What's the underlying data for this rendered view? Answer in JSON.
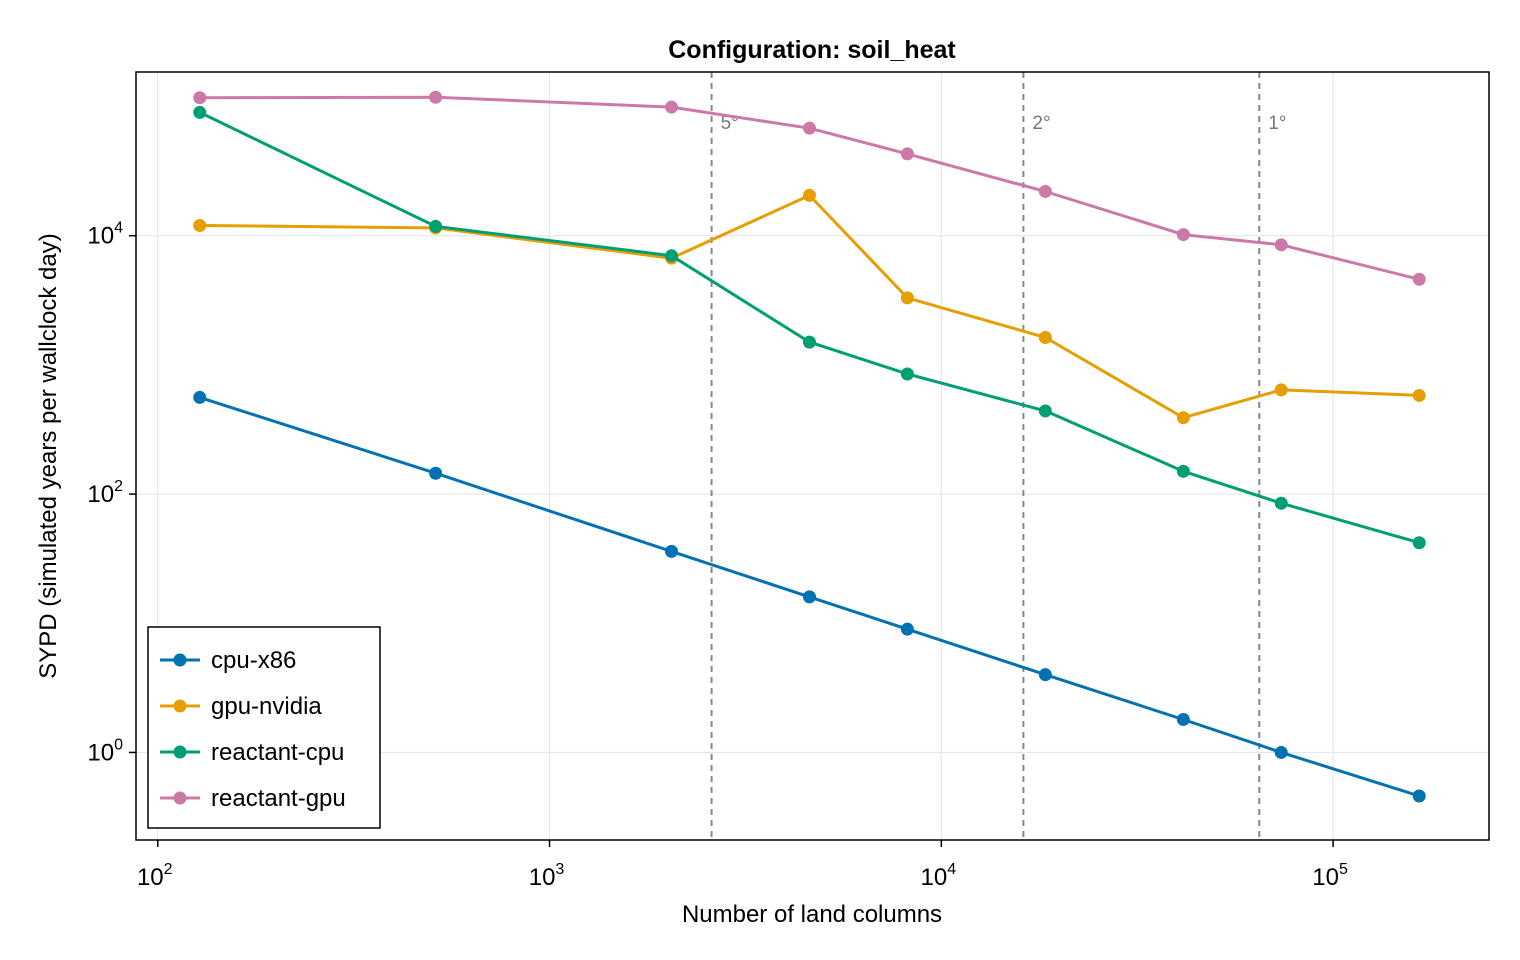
{
  "chart_data": {
    "type": "line",
    "title": "Configuration: soil_heat",
    "xlabel": "Number of land columns",
    "ylabel": "SYPD (simulated years per wallclock day)",
    "xscale": "log",
    "yscale": "log",
    "xlim": [
      88,
      250000
    ],
    "ylim": [
      0.21,
      185000
    ],
    "grid": true,
    "legend_position": "bottom-left",
    "xticks": [
      {
        "value": 100,
        "base": "10",
        "exp": "2"
      },
      {
        "value": 1000,
        "base": "10",
        "exp": "3"
      },
      {
        "value": 10000,
        "base": "10",
        "exp": "4"
      },
      {
        "value": 100000,
        "base": "10",
        "exp": "5"
      }
    ],
    "yticks": [
      {
        "value": 1,
        "base": "10",
        "exp": "0"
      },
      {
        "value": 100,
        "base": "10",
        "exp": "2"
      },
      {
        "value": 10000,
        "base": "10",
        "exp": "4"
      }
    ],
    "reference_lines": [
      {
        "x": 2592,
        "label": "5°"
      },
      {
        "x": 16200,
        "label": "2°"
      },
      {
        "x": 64800,
        "label": "1°"
      }
    ],
    "x": [
      128,
      512,
      2048,
      4608,
      8192,
      18432,
      41472,
      73728,
      165888
    ],
    "series": [
      {
        "name": "cpu-x86",
        "color": "#0072b2",
        "values": [
          560,
          145,
          36,
          16,
          9.0,
          4.0,
          1.8,
          1.0,
          0.46
        ]
      },
      {
        "name": "gpu-nvidia",
        "color": "#e69f00",
        "values": [
          12000,
          11500,
          6700,
          20500,
          3300,
          1630,
          390,
          640,
          580
        ]
      },
      {
        "name": "reactant-cpu",
        "color": "#009e73",
        "values": [
          90000,
          11800,
          7000,
          1500,
          850,
          440,
          150,
          85,
          42
        ]
      },
      {
        "name": "reactant-gpu",
        "color": "#cc79a7",
        "values": [
          117000,
          118000,
          99000,
          68000,
          43000,
          22000,
          10200,
          8500,
          4600
        ]
      }
    ]
  }
}
